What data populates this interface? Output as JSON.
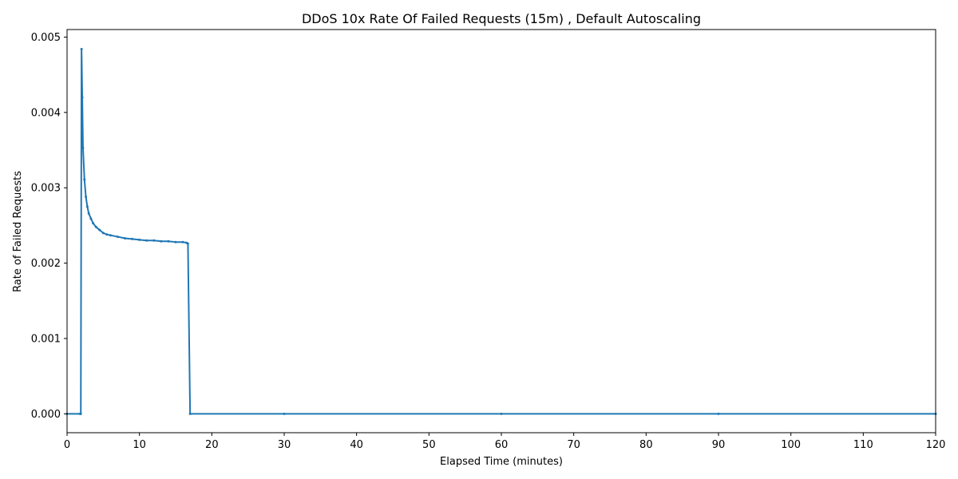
{
  "chart_data": {
    "type": "line",
    "title": "DDoS 10x Rate Of Failed Requests (15m) , Default Autoscaling",
    "xlabel": "Elapsed Time (minutes)",
    "ylabel": "Rate of Failed Requests",
    "xlim": [
      0,
      120
    ],
    "ylim": [
      -0.00025,
      0.0051
    ],
    "xticks": [
      0,
      10,
      20,
      30,
      40,
      50,
      60,
      70,
      80,
      90,
      100,
      110,
      120
    ],
    "yticks": [
      0.0,
      0.001,
      0.002,
      0.003,
      0.004,
      0.005
    ],
    "ytick_labels": [
      "0.000",
      "0.001",
      "0.002",
      "0.003",
      "0.004",
      "0.005"
    ],
    "grid": false,
    "series": [
      {
        "color": "#1f77b4",
        "marker": "dot",
        "x": [
          0,
          1.8,
          1.9,
          2.0,
          2.1,
          2.2,
          2.4,
          2.6,
          2.8,
          3.0,
          3.3,
          3.6,
          4.0,
          4.5,
          5.0,
          5.5,
          6.0,
          7.0,
          8.0,
          9.0,
          10.0,
          11.0,
          12.0,
          13.0,
          14.0,
          15.0,
          16.0,
          16.5,
          16.7,
          17.0,
          30,
          60,
          90,
          120
        ],
        "y": [
          0.0,
          0.0,
          0.0,
          0.00484,
          0.0042,
          0.00353,
          0.00311,
          0.00288,
          0.00275,
          0.00266,
          0.00259,
          0.00253,
          0.00248,
          0.00244,
          0.0024,
          0.00238,
          0.00237,
          0.00235,
          0.00233,
          0.00232,
          0.00231,
          0.0023,
          0.0023,
          0.00229,
          0.00229,
          0.00228,
          0.00228,
          0.00227,
          0.00226,
          0.0,
          0.0,
          0.0,
          0.0,
          0.0
        ]
      }
    ]
  }
}
